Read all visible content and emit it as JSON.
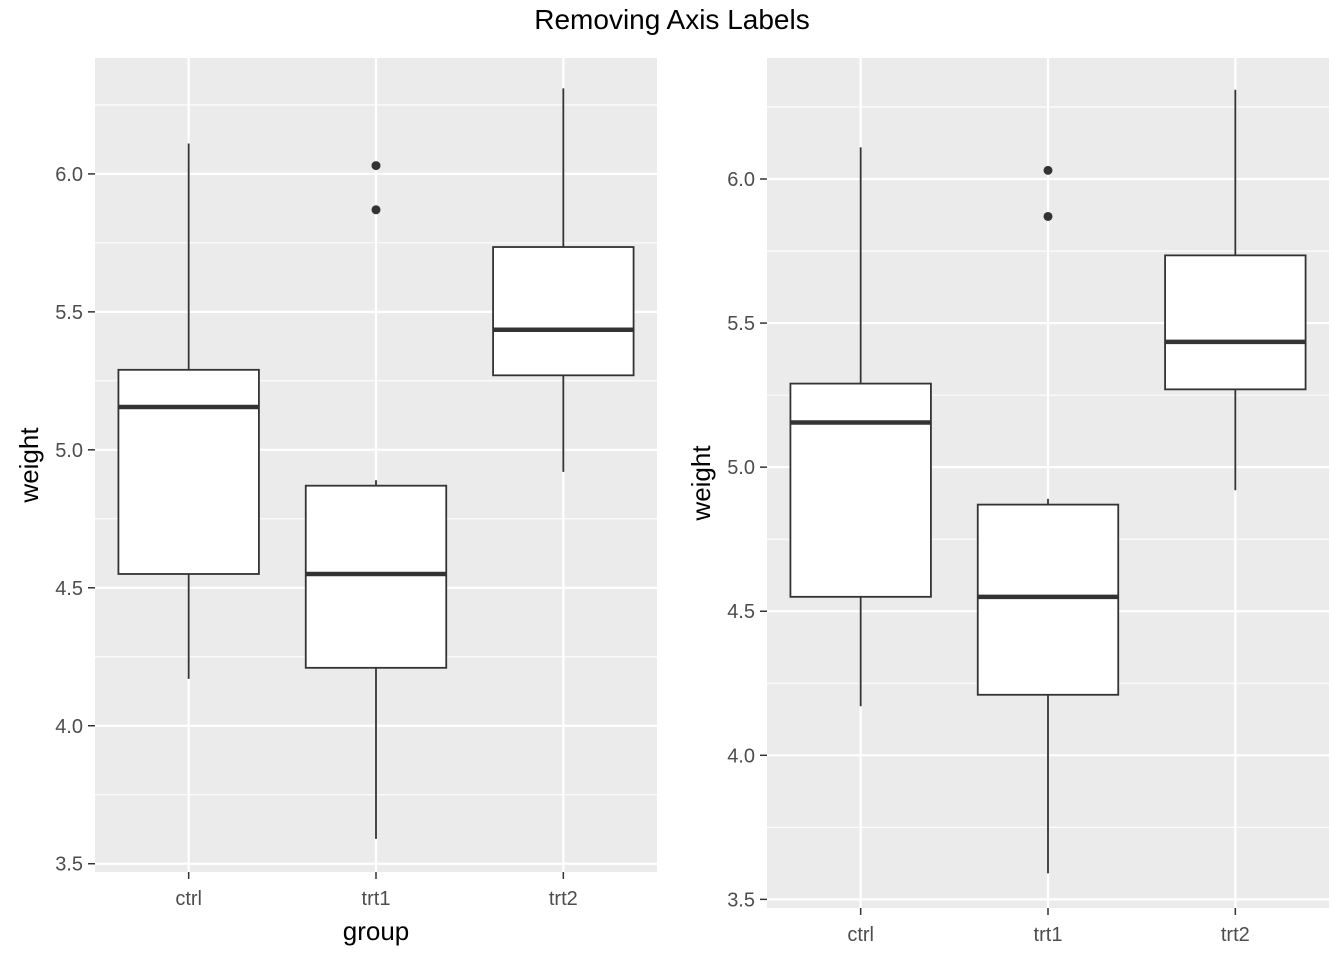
{
  "title": "Removing Axis Labels",
  "colors": {
    "panel_background": "#ebebeb",
    "gridline": "#ffffff",
    "box_fill": "#ffffff",
    "box_stroke": "#333333",
    "tick_label": "#4d4d4d"
  },
  "chart_data": [
    {
      "type": "boxplot",
      "title": "",
      "xlabel": "group",
      "ylabel": "weight",
      "ylim": [
        3.47,
        6.42
      ],
      "yticks": [
        3.5,
        4.0,
        4.5,
        5.0,
        5.5,
        6.0
      ],
      "ytick_labels": [
        "3.5",
        "4.0",
        "4.5",
        "5.0",
        "5.5",
        "6.0"
      ],
      "grid": true,
      "categories": [
        "ctrl",
        "trt1",
        "trt2"
      ],
      "boxes": [
        {
          "category": "ctrl",
          "whisker_low": 4.17,
          "q1": 4.55,
          "median": 5.155,
          "q3": 5.29,
          "whisker_high": 6.11,
          "outliers": []
        },
        {
          "category": "trt1",
          "whisker_low": 3.59,
          "q1": 4.21,
          "median": 4.55,
          "q3": 4.87,
          "whisker_high": 4.89,
          "outliers": [
            5.87,
            6.03
          ]
        },
        {
          "category": "trt2",
          "whisker_low": 4.92,
          "q1": 5.27,
          "median": 5.435,
          "q3": 5.735,
          "whisker_high": 6.31,
          "outliers": []
        }
      ]
    },
    {
      "type": "boxplot",
      "title": "",
      "xlabel": "",
      "ylabel": "weight",
      "ylim": [
        3.47,
        6.42
      ],
      "yticks": [
        3.5,
        4.0,
        4.5,
        5.0,
        5.5,
        6.0
      ],
      "ytick_labels": [
        "3.5",
        "4.0",
        "4.5",
        "5.0",
        "5.5",
        "6.0"
      ],
      "grid": true,
      "categories": [
        "ctrl",
        "trt1",
        "trt2"
      ],
      "boxes": [
        {
          "category": "ctrl",
          "whisker_low": 4.17,
          "q1": 4.55,
          "median": 5.155,
          "q3": 5.29,
          "whisker_high": 6.11,
          "outliers": []
        },
        {
          "category": "trt1",
          "whisker_low": 3.59,
          "q1": 4.21,
          "median": 4.55,
          "q3": 4.87,
          "whisker_high": 4.89,
          "outliers": [
            5.87,
            6.03
          ]
        },
        {
          "category": "trt2",
          "whisker_low": 4.92,
          "q1": 5.27,
          "median": 5.435,
          "q3": 5.735,
          "whisker_high": 6.31,
          "outliers": []
        }
      ]
    }
  ]
}
